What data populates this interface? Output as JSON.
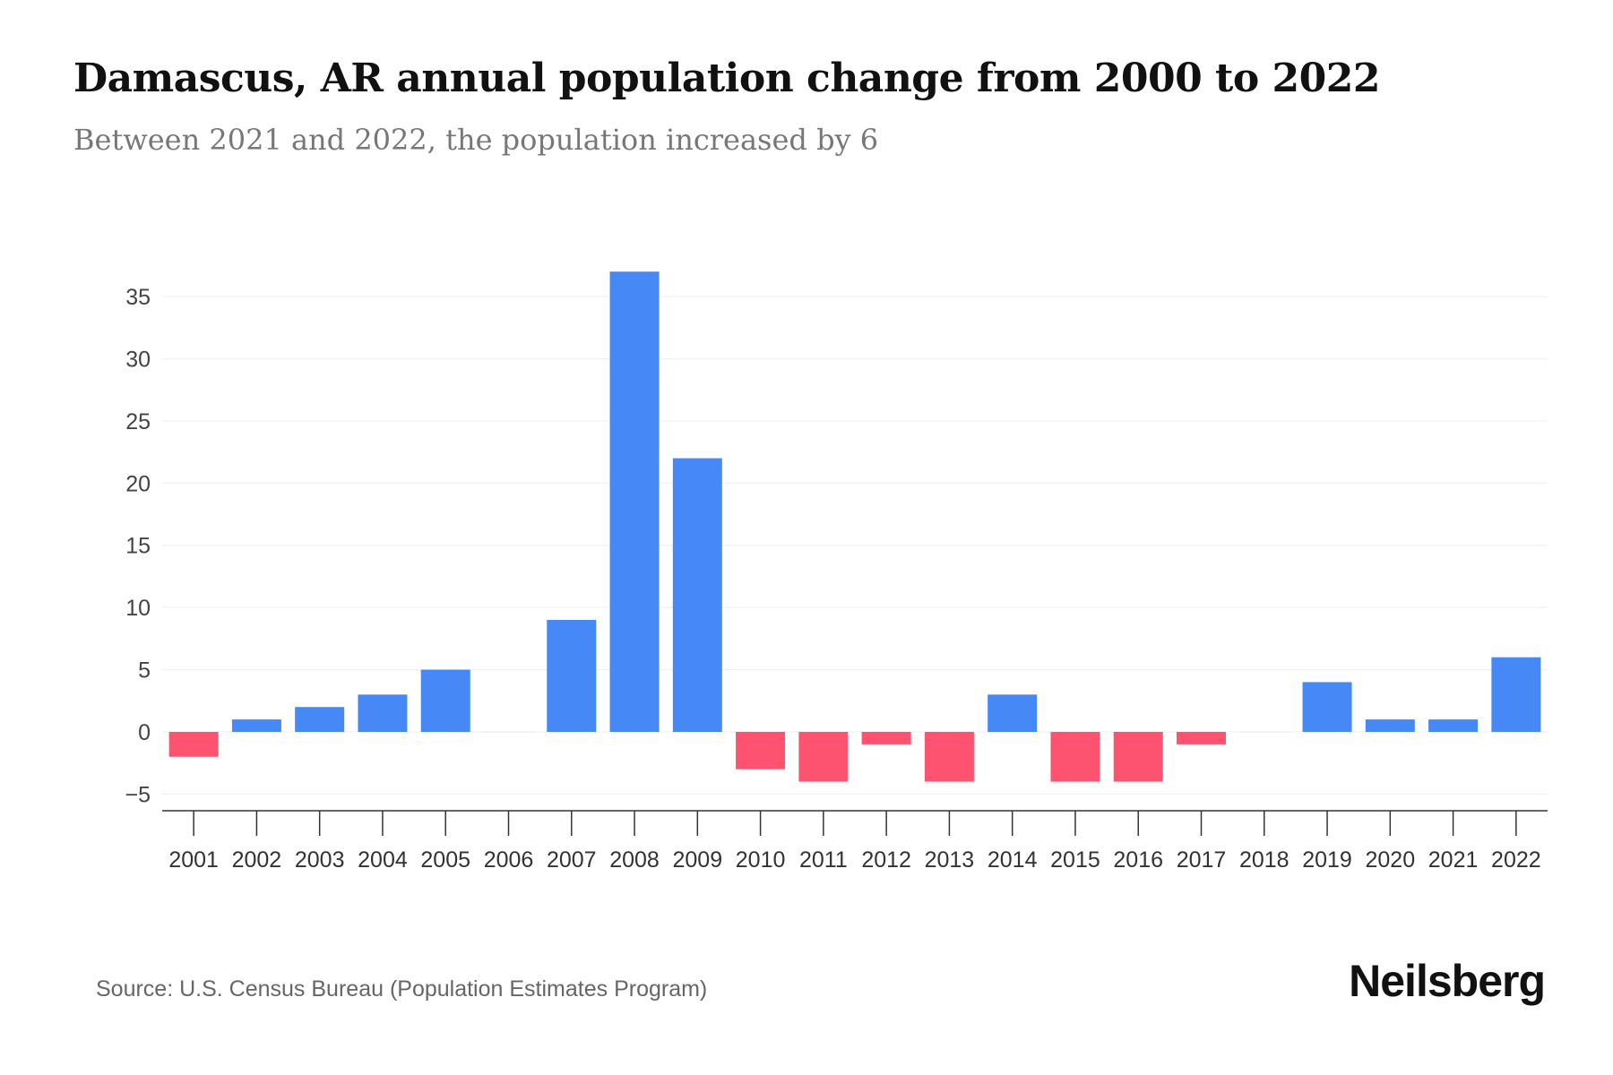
{
  "chart_data": {
    "type": "bar",
    "title": "Damascus, AR annual population change from 2000 to 2022",
    "subtitle": "Between 2021 and 2022, the population increased by 6",
    "categories": [
      "2001",
      "2002",
      "2003",
      "2004",
      "2005",
      "2006",
      "2007",
      "2008",
      "2009",
      "2010",
      "2011",
      "2012",
      "2013",
      "2014",
      "2015",
      "2016",
      "2017",
      "2018",
      "2019",
      "2020",
      "2021",
      "2022"
    ],
    "values": [
      -2,
      1,
      2,
      3,
      5,
      0,
      9,
      37,
      22,
      -3,
      -4,
      -1,
      -4,
      3,
      -4,
      -4,
      -1,
      0,
      4,
      1,
      1,
      6
    ],
    "xlabel": "",
    "ylabel": "",
    "ylim": [
      -6.5,
      37
    ],
    "yticks": [
      -5,
      0,
      5,
      10,
      15,
      20,
      25,
      30,
      35
    ],
    "ytick_labels": [
      "−5",
      "0",
      "5",
      "10",
      "15",
      "20",
      "25",
      "30",
      "35"
    ],
    "grid": true,
    "colors": {
      "positive": "#4688f5",
      "negative": "#fe5370"
    }
  },
  "source": "Source: U.S. Census Bureau (Population Estimates Program)",
  "brand": "Neilsberg"
}
